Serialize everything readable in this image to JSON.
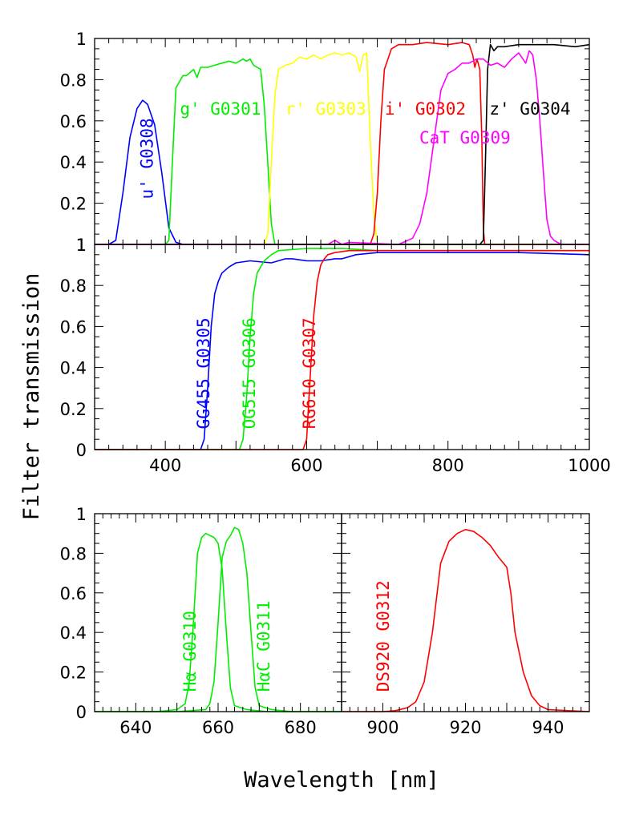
{
  "figure": {
    "ylabel": "Filter transmission",
    "xlabel": "Wavelength [nm]"
  },
  "chart_data": [
    {
      "id": "broadband",
      "type": "line",
      "xlim": [
        300,
        1000
      ],
      "ylim": [
        0,
        1
      ],
      "xticks": [],
      "yticks": [
        0.2,
        0.4,
        0.6,
        0.8,
        1
      ],
      "ytick_labels": [
        "0.2",
        "0.4",
        "0.6",
        "0.8",
        "1"
      ],
      "bottom_label": "1",
      "labels": [
        {
          "text": "u' G0308",
          "x": 382,
          "y": 0.22,
          "rotate": true,
          "color": "#0000ff"
        },
        {
          "text": "g' G0301",
          "x": 478,
          "y": 0.63,
          "rotate": false,
          "color": "#00ee00"
        },
        {
          "text": "r' G0303",
          "x": 627,
          "y": 0.63,
          "rotate": false,
          "color": "#ffff00"
        },
        {
          "text": "i' G0302",
          "x": 768,
          "y": 0.63,
          "rotate": false,
          "color": "#ff0000"
        },
        {
          "text": "z' G0304",
          "x": 916,
          "y": 0.63,
          "rotate": false,
          "color": "#000000"
        },
        {
          "text": "CaT G0309",
          "x": 824,
          "y": 0.49,
          "rotate": false,
          "color": "#ff00ff"
        }
      ],
      "series": [
        {
          "color": "#0000ff",
          "x": [
            300,
            320,
            330,
            340,
            350,
            360,
            368,
            375,
            385,
            395,
            405,
            415,
            425,
            440,
            1000
          ],
          "y": [
            0,
            0,
            0.02,
            0.25,
            0.52,
            0.66,
            0.7,
            0.68,
            0.58,
            0.35,
            0.08,
            0.01,
            0,
            0,
            0
          ]
        },
        {
          "color": "#00ee00",
          "x": [
            300,
            400,
            405,
            410,
            415,
            420,
            425,
            430,
            440,
            445,
            450,
            460,
            470,
            480,
            490,
            500,
            510,
            515,
            520,
            525,
            535,
            540,
            545,
            550,
            555,
            1000
          ],
          "y": [
            0,
            0,
            0.02,
            0.4,
            0.76,
            0.79,
            0.82,
            0.82,
            0.85,
            0.81,
            0.86,
            0.86,
            0.87,
            0.88,
            0.89,
            0.88,
            0.9,
            0.89,
            0.9,
            0.87,
            0.85,
            0.68,
            0.4,
            0.1,
            0,
            0
          ]
        },
        {
          "color": "#ffff00",
          "x": [
            300,
            540,
            545,
            550,
            555,
            560,
            570,
            580,
            590,
            600,
            610,
            620,
            630,
            640,
            650,
            660,
            670,
            675,
            680,
            685,
            690,
            695,
            700,
            1000
          ],
          "y": [
            0,
            0,
            0.05,
            0.4,
            0.72,
            0.85,
            0.87,
            0.88,
            0.91,
            0.9,
            0.92,
            0.9,
            0.92,
            0.93,
            0.92,
            0.93,
            0.91,
            0.84,
            0.92,
            0.93,
            0.5,
            0.15,
            0,
            0
          ]
        },
        {
          "color": "#ff0000",
          "x": [
            300,
            690,
            695,
            700,
            705,
            710,
            720,
            730,
            750,
            770,
            800,
            820,
            830,
            835,
            838,
            841,
            845,
            848,
            850,
            852,
            1000
          ],
          "y": [
            0,
            0,
            0.05,
            0.25,
            0.6,
            0.85,
            0.95,
            0.97,
            0.97,
            0.98,
            0.97,
            0.98,
            0.97,
            0.92,
            0.86,
            0.9,
            0.85,
            0.5,
            0.08,
            0,
            0
          ]
        },
        {
          "color": "#000000",
          "x": [
            300,
            835,
            845,
            850,
            853,
            856,
            860,
            865,
            870,
            880,
            900,
            920,
            950,
            980,
            1000
          ],
          "y": [
            0,
            0,
            0,
            0.02,
            0.4,
            0.85,
            0.97,
            0.94,
            0.96,
            0.96,
            0.97,
            0.97,
            0.97,
            0.96,
            0.97
          ]
        },
        {
          "color": "#ff00ff",
          "x": [
            300,
            630,
            640,
            650,
            660,
            730,
            750,
            760,
            770,
            780,
            790,
            800,
            810,
            820,
            830,
            840,
            850,
            860,
            870,
            880,
            890,
            900,
            910,
            915,
            920,
            925,
            930,
            935,
            940,
            945,
            950,
            960,
            1000
          ],
          "y": [
            0,
            0,
            0.02,
            0,
            0.01,
            0,
            0.03,
            0.1,
            0.25,
            0.5,
            0.75,
            0.83,
            0.85,
            0.88,
            0.88,
            0.9,
            0.9,
            0.87,
            0.88,
            0.86,
            0.9,
            0.93,
            0.88,
            0.94,
            0.92,
            0.8,
            0.6,
            0.35,
            0.12,
            0.04,
            0.02,
            0,
            0
          ]
        }
      ]
    },
    {
      "id": "longpass",
      "type": "line",
      "xlim": [
        300,
        1000
      ],
      "ylim": [
        0,
        1
      ],
      "xticks": [
        400,
        600,
        800,
        1000
      ],
      "xtick_labels": [
        "400",
        "600",
        "800",
        "1000"
      ],
      "yticks": [
        0,
        0.2,
        0.4,
        0.6,
        0.8,
        1
      ],
      "ytick_labels": [
        "0",
        "0.2",
        "0.4",
        "0.6",
        "0.8",
        "1"
      ],
      "labels": [
        {
          "text": "GG455 G0305",
          "x": 462,
          "y": 0.1,
          "rotate": true,
          "color": "#0000ff"
        },
        {
          "text": "OG515 G0306",
          "x": 527,
          "y": 0.1,
          "rotate": true,
          "color": "#00ee00"
        },
        {
          "text": "RG610 G0307",
          "x": 612,
          "y": 0.1,
          "rotate": true,
          "color": "#ff0000"
        }
      ],
      "series": [
        {
          "color": "#0000ff",
          "x": [
            300,
            450,
            455,
            460,
            465,
            470,
            475,
            480,
            490,
            500,
            520,
            550,
            570,
            580,
            600,
            620,
            640,
            650,
            670,
            700,
            750,
            800,
            900,
            1000
          ],
          "y": [
            0,
            0,
            0.05,
            0.3,
            0.6,
            0.76,
            0.82,
            0.86,
            0.89,
            0.91,
            0.92,
            0.91,
            0.93,
            0.93,
            0.92,
            0.92,
            0.93,
            0.93,
            0.95,
            0.96,
            0.96,
            0.96,
            0.96,
            0.95
          ]
        },
        {
          "color": "#00ee00",
          "x": [
            300,
            505,
            510,
            515,
            520,
            525,
            530,
            540,
            550,
            560,
            600,
            650,
            700,
            800,
            900,
            1000
          ],
          "y": [
            0,
            0,
            0.05,
            0.25,
            0.55,
            0.76,
            0.86,
            0.92,
            0.95,
            0.97,
            0.98,
            0.98,
            0.97,
            0.97,
            0.97,
            0.97
          ]
        },
        {
          "color": "#ff0000",
          "x": [
            300,
            595,
            600,
            605,
            610,
            615,
            620,
            625,
            630,
            640,
            660,
            700,
            800,
            900,
            1000
          ],
          "y": [
            0,
            0,
            0.05,
            0.35,
            0.65,
            0.82,
            0.9,
            0.93,
            0.95,
            0.96,
            0.97,
            0.97,
            0.97,
            0.97,
            0.97
          ]
        }
      ]
    },
    {
      "id": "halpha",
      "type": "line",
      "xlim": [
        630,
        690
      ],
      "ylim": [
        0,
        1
      ],
      "xticks": [
        640,
        660,
        680
      ],
      "xtick_labels": [
        "640",
        "660",
        "680"
      ],
      "yticks": [
        0,
        0.2,
        0.4,
        0.6,
        0.8,
        1
      ],
      "ytick_labels": [
        "0",
        "0.2",
        "0.4",
        "0.6",
        "0.8",
        "1"
      ],
      "labels": [
        {
          "text": "Hα G0310",
          "x": 654.5,
          "y": 0.1,
          "rotate": true,
          "color": "#00ee00"
        },
        {
          "text": "HαC G0311",
          "x": 672.5,
          "y": 0.1,
          "rotate": true,
          "color": "#00ee00"
        }
      ],
      "series": [
        {
          "color": "#00ee00",
          "x": [
            630,
            645,
            650,
            652,
            653,
            654,
            655,
            656,
            657,
            658,
            659,
            660,
            661,
            662,
            663,
            664,
            667,
            672,
            690
          ],
          "y": [
            0,
            0,
            0.01,
            0.04,
            0.15,
            0.45,
            0.8,
            0.88,
            0.9,
            0.89,
            0.88,
            0.85,
            0.72,
            0.4,
            0.12,
            0.03,
            0.01,
            0,
            0
          ]
        },
        {
          "color": "#00ee00",
          "x": [
            630,
            650,
            657,
            658,
            659,
            660,
            661,
            662,
            663,
            664,
            665,
            666,
            667,
            668,
            669,
            670,
            673,
            678,
            690
          ],
          "y": [
            0,
            0,
            0.01,
            0.04,
            0.15,
            0.45,
            0.78,
            0.86,
            0.89,
            0.93,
            0.92,
            0.85,
            0.7,
            0.4,
            0.12,
            0.03,
            0.01,
            0,
            0
          ]
        }
      ]
    },
    {
      "id": "ds920",
      "type": "line",
      "xlim": [
        890,
        950
      ],
      "ylim": [
        0,
        1
      ],
      "xticks": [
        900,
        920,
        940
      ],
      "xtick_labels": [
        "900",
        "920",
        "940"
      ],
      "yticks": [
        0,
        0.2,
        0.4,
        0.6,
        0.8,
        1
      ],
      "ytick_labels": [],
      "labels": [
        {
          "text": "DS920 G0312",
          "x": 901.5,
          "y": 0.1,
          "rotate": true,
          "color": "#ff0000"
        }
      ],
      "series": [
        {
          "color": "#ff0000",
          "x": [
            890,
            900,
            903,
            906,
            908,
            910,
            912,
            914,
            916,
            918,
            920,
            922,
            924,
            926,
            928,
            930,
            931,
            932,
            934,
            936,
            938,
            940,
            950
          ],
          "y": [
            0,
            0,
            0.005,
            0.02,
            0.05,
            0.15,
            0.4,
            0.75,
            0.86,
            0.9,
            0.92,
            0.91,
            0.88,
            0.84,
            0.78,
            0.73,
            0.6,
            0.4,
            0.2,
            0.08,
            0.03,
            0.01,
            0
          ]
        }
      ]
    }
  ]
}
